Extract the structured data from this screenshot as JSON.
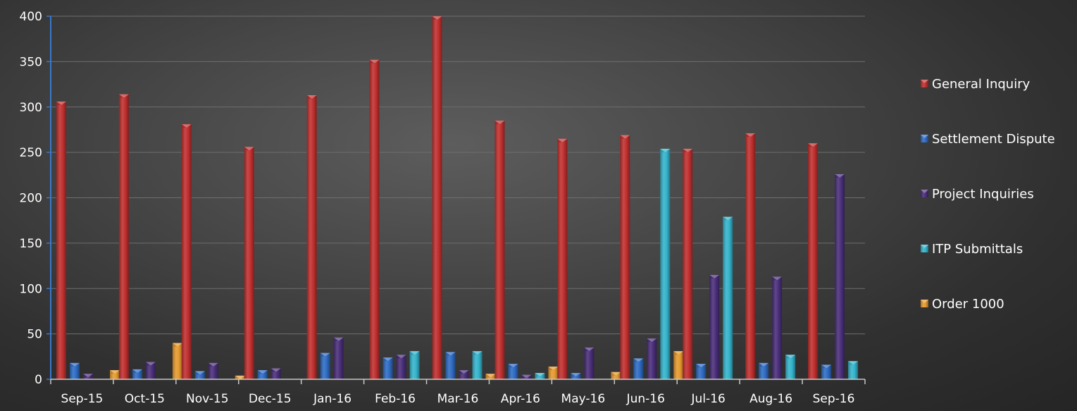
{
  "chart_data": {
    "type": "bar",
    "title": "",
    "xlabel": "",
    "ylabel": "",
    "ylim": [
      0,
      400
    ],
    "yticks": [
      0,
      50,
      100,
      150,
      200,
      250,
      300,
      350,
      400
    ],
    "grid": true,
    "legend_position": "right",
    "categories": [
      "Sep-15",
      "Oct-15",
      "Nov-15",
      "Dec-15",
      "Jan-16",
      "Feb-16",
      "Mar-16",
      "Apr-16",
      "May-16",
      "Jun-16",
      "Jul-16",
      "Aug-16",
      "Sep-16"
    ],
    "series": [
      {
        "name": "General Inquiry",
        "color": "#c0302f",
        "values": [
          306,
          314,
          281,
          256,
          313,
          352,
          400,
          285,
          265,
          269,
          254,
          271,
          260
        ]
      },
      {
        "name": "Settlement Dispute",
        "color": "#2f6cc4",
        "values": [
          18,
          11,
          9,
          10,
          29,
          24,
          30,
          17,
          7,
          23,
          17,
          18,
          16
        ]
      },
      {
        "name": "Project  Inquiries",
        "color": "#4a2f7a",
        "values": [
          6,
          19,
          18,
          12,
          46,
          27,
          10,
          5,
          35,
          45,
          115,
          113,
          226
        ]
      },
      {
        "name": "ITP Submittals",
        "color": "#35b4cc",
        "values": [
          0,
          0,
          0,
          0,
          0,
          31,
          31,
          7,
          0,
          254,
          179,
          27,
          20
        ]
      },
      {
        "name": "Order 1000",
        "color": "#e59a2e",
        "values": [
          10,
          40,
          4,
          0,
          0,
          0,
          6,
          14,
          8,
          31,
          0,
          0,
          0
        ]
      }
    ]
  }
}
